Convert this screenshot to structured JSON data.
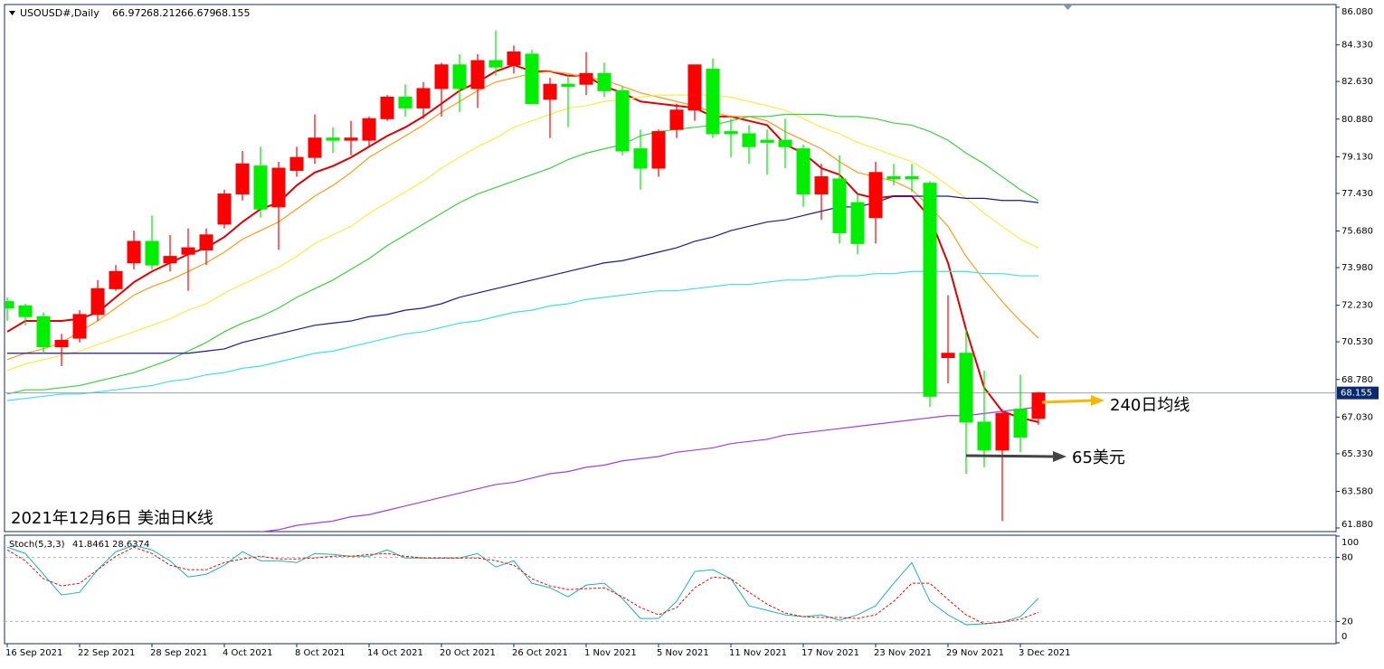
{
  "chart_data": [
    {
      "type": "candlestick",
      "title": "USOUSD#,Daily",
      "caption": "2021年12月6日 美油日K线",
      "categories": [
        "16 Sep 2021",
        null,
        null,
        null,
        "22 Sep 2021",
        null,
        null,
        null,
        "28 Sep 2021",
        null,
        null,
        null,
        "4 Oct 2021",
        null,
        null,
        null,
        "8 Oct 2021",
        null,
        null,
        null,
        "14 Oct 2021",
        null,
        null,
        null,
        "20 Oct 2021",
        null,
        null,
        null,
        "26 Oct 2021",
        null,
        null,
        null,
        "1 Nov 2021",
        null,
        null,
        null,
        "5 Nov 2021",
        null,
        null,
        null,
        "11 Nov 2021",
        null,
        null,
        null,
        "17 Nov 2021",
        null,
        null,
        null,
        "23 Nov 2021",
        null,
        null,
        null,
        "29 Nov 2021",
        null,
        null,
        null,
        "3 Dec 2021",
        null
      ],
      "open": [
        72.4,
        72.2,
        71.7,
        70.3,
        70.7,
        71.8,
        73.0,
        74.2,
        75.2,
        74.2,
        74.6,
        74.8,
        76.0,
        77.4,
        78.7,
        76.8,
        78.5,
        79.1,
        80.0,
        79.9,
        79.9,
        80.9,
        81.9,
        81.4,
        82.3,
        83.4,
        82.3,
        83.6,
        83.4,
        83.9,
        81.8,
        82.5,
        82.5,
        83.0,
        82.2,
        79.5,
        78.6,
        80.4,
        81.3,
        83.2,
        80.3,
        80.2,
        79.9,
        79.9,
        79.5,
        77.4,
        78.1,
        77.0,
        76.3,
        78.2,
        78.2,
        77.9,
        69.8,
        70.0,
        66.8,
        65.5,
        67.4,
        66.972
      ],
      "high": [
        72.6,
        72.3,
        71.9,
        70.9,
        72.0,
        73.4,
        74.1,
        75.7,
        76.4,
        75.5,
        75.8,
        75.8,
        77.6,
        79.4,
        79.6,
        78.9,
        79.6,
        81.1,
        80.5,
        80.8,
        81.0,
        82.0,
        82.5,
        82.6,
        83.5,
        83.9,
        83.9,
        85.0,
        84.3,
        84.1,
        82.8,
        82.9,
        84.0,
        83.5,
        82.4,
        80.4,
        80.4,
        81.6,
        83.4,
        83.7,
        80.9,
        80.6,
        80.4,
        80.9,
        79.7,
        78.8,
        79.2,
        77.4,
        78.9,
        78.8,
        78.8,
        78.0,
        72.7,
        71.1,
        69.2,
        67.4,
        69.0,
        68.212
      ],
      "low": [
        71.5,
        71.3,
        70.0,
        69.4,
        70.5,
        71.5,
        72.9,
        73.9,
        73.9,
        73.8,
        72.9,
        74.1,
        75.8,
        77.1,
        76.3,
        74.8,
        78.2,
        78.8,
        79.3,
        79.2,
        79.6,
        80.8,
        81.0,
        80.9,
        81.0,
        81.2,
        81.4,
        82.9,
        83.0,
        81.6,
        80.0,
        80.5,
        82.0,
        81.9,
        79.2,
        77.6,
        78.2,
        80.0,
        80.8,
        80.0,
        79.1,
        78.8,
        78.3,
        78.6,
        76.8,
        76.2,
        75.1,
        74.6,
        75.1,
        77.8,
        77.5,
        67.5,
        68.6,
        64.4,
        64.7,
        62.2,
        65.4,
        66.679
      ],
      "close": [
        72.1,
        71.7,
        70.3,
        70.6,
        71.8,
        73.0,
        73.8,
        75.2,
        74.1,
        74.5,
        74.9,
        75.5,
        77.4,
        78.8,
        76.7,
        78.6,
        79.1,
        80.0,
        79.9,
        80.0,
        80.9,
        81.9,
        81.4,
        82.3,
        83.4,
        82.3,
        83.6,
        83.3,
        84.0,
        81.6,
        82.5,
        82.4,
        83.0,
        82.2,
        79.4,
        78.6,
        80.3,
        81.3,
        83.4,
        80.2,
        80.2,
        79.6,
        79.8,
        79.6,
        77.4,
        78.2,
        75.6,
        75.1,
        78.4,
        78.1,
        78.1,
        68.0,
        70.0,
        66.8,
        65.5,
        67.2,
        66.1,
        68.155
      ],
      "up_color": "#ff0000",
      "down_color": "#00ee00",
      "moving_averages": [
        {
          "color": "#e00000",
          "values": [
            71.0,
            71.5,
            71.5,
            71.5,
            71.6,
            71.9,
            72.6,
            73.3,
            73.8,
            74.2,
            74.6,
            74.9,
            75.4,
            76.1,
            76.7,
            77.0,
            77.8,
            78.4,
            78.7,
            79.1,
            79.6,
            80.1,
            80.5,
            81.0,
            81.6,
            82.2,
            82.6,
            83.1,
            83.4,
            83.1,
            83.1,
            82.9,
            82.9,
            82.4,
            82.1,
            81.7,
            81.6,
            81.5,
            81.4,
            81.0,
            81.0,
            80.8,
            80.6,
            79.7,
            79.3,
            78.6,
            78.3,
            77.4,
            77.2,
            77.3,
            77.3,
            76.3,
            74.2,
            71.1,
            68.4,
            67.3,
            67.0,
            66.8
          ]
        },
        {
          "color": "#ff9a1f",
          "values": [
            69.7,
            70.0,
            70.2,
            70.5,
            71.0,
            71.5,
            72.1,
            72.7,
            73.1,
            73.4,
            73.8,
            74.2,
            74.7,
            75.3,
            75.7,
            76.1,
            76.7,
            77.3,
            77.8,
            78.4,
            79.1,
            79.6,
            80.1,
            80.6,
            81.2,
            81.7,
            82.2,
            82.6,
            82.8,
            83.0,
            83.1,
            83.0,
            82.8,
            82.7,
            82.4,
            82.1,
            81.9,
            81.7,
            81.5,
            81.2,
            81.0,
            81.0,
            80.8,
            80.3,
            79.9,
            79.5,
            78.9,
            78.4,
            78.2,
            78.0,
            77.6,
            76.8,
            75.9,
            74.5,
            73.4,
            72.4,
            71.5,
            70.7
          ]
        },
        {
          "color": "#ffe94a",
          "values": [
            69.2,
            69.5,
            69.7,
            69.9,
            70.1,
            70.4,
            70.7,
            71.0,
            71.3,
            71.6,
            72.0,
            72.3,
            72.8,
            73.2,
            73.6,
            74.0,
            74.5,
            75.1,
            75.5,
            75.9,
            76.5,
            77.0,
            77.5,
            78.0,
            78.6,
            79.1,
            79.6,
            80.0,
            80.5,
            80.8,
            81.1,
            81.4,
            81.5,
            81.7,
            81.8,
            81.9,
            82.0,
            82.0,
            82.0,
            82.0,
            81.9,
            81.7,
            81.5,
            81.3,
            80.9,
            80.5,
            80.2,
            79.8,
            79.5,
            79.2,
            78.9,
            78.4,
            77.8,
            77.2,
            76.5,
            75.9,
            75.3,
            74.9
          ]
        },
        {
          "color": "#3ecf3e",
          "values": [
            68.1,
            68.3,
            68.3,
            68.4,
            68.5,
            68.7,
            68.9,
            69.1,
            69.4,
            69.7,
            70.1,
            70.5,
            71.0,
            71.4,
            71.7,
            72.1,
            72.6,
            73.0,
            73.4,
            73.9,
            74.4,
            75.0,
            75.5,
            76.0,
            76.5,
            77.0,
            77.4,
            77.7,
            78.0,
            78.3,
            78.6,
            79.0,
            79.3,
            79.5,
            79.7,
            80.1,
            80.3,
            80.4,
            80.5,
            80.6,
            80.8,
            81.0,
            81.0,
            81.1,
            81.1,
            81.1,
            81.0,
            81.0,
            80.9,
            80.7,
            80.6,
            80.3,
            79.9,
            79.3,
            78.8,
            78.2,
            77.6,
            77.1
          ]
        },
        {
          "color": "#1a1a9a",
          "values": [
            70.0,
            70.0,
            70.0,
            70.0,
            70.0,
            70.0,
            70.0,
            70.0,
            70.0,
            70.0,
            70.0,
            70.1,
            70.2,
            70.5,
            70.7,
            70.9,
            71.1,
            71.3,
            71.4,
            71.5,
            71.7,
            71.8,
            72.0,
            72.1,
            72.3,
            72.6,
            72.8,
            73.0,
            73.2,
            73.4,
            73.6,
            73.8,
            74.0,
            74.2,
            74.3,
            74.5,
            74.7,
            74.9,
            75.2,
            75.4,
            75.7,
            75.9,
            76.1,
            76.2,
            76.4,
            76.6,
            76.8,
            76.8,
            77.0,
            77.3,
            77.3,
            77.3,
            77.3,
            77.2,
            77.2,
            77.1,
            77.1,
            77.0
          ]
        },
        {
          "color": "#40e0e0",
          "values": [
            67.8,
            67.9,
            68.0,
            68.1,
            68.1,
            68.2,
            68.3,
            68.4,
            68.5,
            68.7,
            68.8,
            69.0,
            69.1,
            69.3,
            69.4,
            69.6,
            69.8,
            70.0,
            70.1,
            70.3,
            70.5,
            70.7,
            70.9,
            71.0,
            71.2,
            71.4,
            71.5,
            71.7,
            71.9,
            72.0,
            72.2,
            72.3,
            72.5,
            72.6,
            72.7,
            72.8,
            72.9,
            72.9,
            73.0,
            73.1,
            73.2,
            73.2,
            73.3,
            73.4,
            73.4,
            73.5,
            73.6,
            73.6,
            73.7,
            73.7,
            73.8,
            73.8,
            73.8,
            73.8,
            73.7,
            73.7,
            73.6,
            73.6
          ]
        },
        {
          "color": "#a040e0",
          "values": [
            null,
            null,
            null,
            null,
            null,
            null,
            null,
            null,
            null,
            null,
            null,
            null,
            null,
            null,
            61.7,
            61.8,
            62.0,
            62.1,
            62.2,
            62.4,
            62.5,
            62.7,
            62.9,
            63.1,
            63.3,
            63.5,
            63.7,
            63.9,
            64.0,
            64.2,
            64.4,
            64.5,
            64.7,
            64.8,
            65.0,
            65.1,
            65.2,
            65.4,
            65.5,
            65.6,
            65.8,
            65.9,
            66.0,
            66.2,
            66.3,
            66.4,
            66.5,
            66.6,
            66.7,
            66.8,
            66.9,
            67.0,
            67.1,
            67.1,
            67.2,
            67.3,
            67.4,
            67.5
          ]
        }
      ],
      "annotations": [
        {
          "text": "240日均线",
          "color": "#f5b800"
        },
        {
          "text": "65美元",
          "color": "#444444"
        }
      ],
      "ylim": [
        61.88,
        86.08
      ],
      "yticks": [
        {
          "value": 86.08,
          "label": "86.080"
        },
        {
          "value": 84.33,
          "label": "84.330"
        },
        {
          "value": 82.63,
          "label": "82.630"
        },
        {
          "value": 80.88,
          "label": "80.880"
        },
        {
          "value": 79.13,
          "label": "79.130"
        },
        {
          "value": 77.43,
          "label": "77.430"
        },
        {
          "value": 75.68,
          "label": "75.680"
        },
        {
          "value": 73.98,
          "label": "73.980"
        },
        {
          "value": 72.23,
          "label": "72.230"
        },
        {
          "value": 70.53,
          "label": "70.530"
        },
        {
          "value": 68.78,
          "label": "68.780"
        },
        {
          "value": 67.03,
          "label": "67.030"
        },
        {
          "value": 65.33,
          "label": "65.330"
        },
        {
          "value": 63.58,
          "label": "63.580"
        },
        {
          "value": 61.88,
          "label": "61.880"
        }
      ]
    },
    {
      "type": "line",
      "title": "Stoch(5,3,3)",
      "series": [
        {
          "color": "#20b2aa",
          "style": "solid",
          "values": [
            89.6,
            83.7,
            64.2,
            44.8,
            47.3,
            68.5,
            85.4,
            91.3,
            87.1,
            76.9,
            61.7,
            64.2,
            72.7,
            85.4,
            76.9,
            76.9,
            75.2,
            83.7,
            82.8,
            81.1,
            81.1,
            87.1,
            79.5,
            79.5,
            79.5,
            79.5,
            83.7,
            71.0,
            76.9,
            55.8,
            51.6,
            43.1,
            54.1,
            55.8,
            41.4,
            22.8,
            22.8,
            38.9,
            66.8,
            68.5,
            60.0,
            34.7,
            30.4,
            26.2,
            24.5,
            26.2,
            21.1,
            26.2,
            34.7,
            55.8,
            75.2,
            38.9,
            26.2,
            16.9,
            17.8,
            19.4,
            24.5,
            41.8461
          ]
        },
        {
          "color": "#ff0000",
          "style": "dashed",
          "values": [
            87.1,
            76.9,
            60.0,
            53.3,
            55.8,
            68.5,
            81.1,
            89.6,
            83.7,
            72.7,
            68.5,
            68.5,
            75.2,
            78.6,
            81.1,
            78.6,
            78.6,
            79.5,
            81.1,
            81.1,
            82.8,
            83.7,
            81.1,
            79.5,
            79.5,
            79.5,
            79.5,
            76.9,
            72.7,
            60.0,
            53.3,
            49.9,
            50.7,
            51.6,
            43.1,
            33.0,
            26.2,
            33.0,
            51.6,
            61.7,
            60.0,
            47.3,
            36.3,
            27.9,
            24.5,
            23.7,
            23.7,
            22.8,
            26.2,
            38.9,
            55.8,
            55.8,
            40.6,
            26.2,
            17.8,
            19.4,
            22.0,
            28.6374
          ]
        }
      ],
      "ylim": [
        0,
        100
      ],
      "yticks": [
        0,
        20,
        80,
        100
      ],
      "grid": true
    }
  ]
}
